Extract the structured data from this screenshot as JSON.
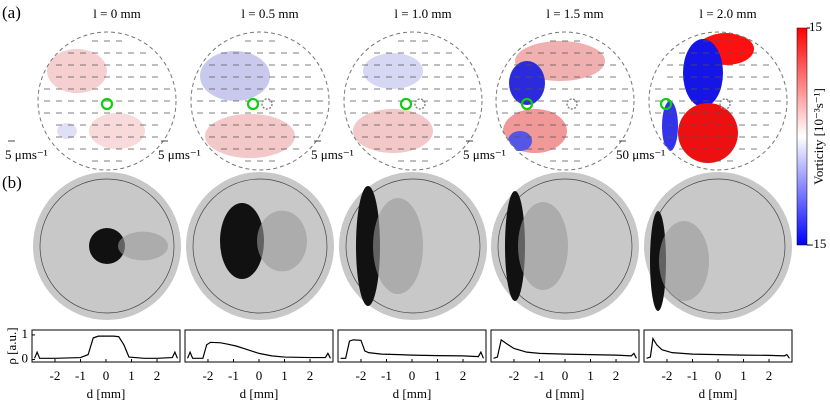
{
  "panel_labels": [
    "(a)",
    "(b)"
  ],
  "chart_data": [
    {
      "type": "line",
      "title": "l = 0 mm",
      "arrow_label": "5 μms⁻¹",
      "color": "#000000",
      "x": [
        -2.8,
        -2.7,
        -2.6,
        -2,
        -1,
        -0.7,
        -0.5,
        -0.3,
        0,
        0.3,
        0.5,
        0.7,
        0.9,
        1.5,
        2,
        2.6,
        2.7,
        2.8
      ],
      "values": [
        0.05,
        0.3,
        0.05,
        0.05,
        0.08,
        0.2,
        0.88,
        0.95,
        0.95,
        0.95,
        0.93,
        0.6,
        0.1,
        0.05,
        0.05,
        0.08,
        0.3,
        0.05
      ],
      "xlim": [
        -2.9,
        2.9
      ],
      "xticks": [
        -2,
        -1,
        0,
        1,
        2
      ],
      "ylim": [
        -0.1,
        1.2
      ],
      "yticks": [
        0,
        1
      ],
      "xlabel": "d [mm]",
      "ylabel": "ρ [a.u.]"
    },
    {
      "type": "line",
      "title": "l = 0.5 mm",
      "arrow_label": "5 μms⁻¹",
      "color": "#000000",
      "x": [
        -2.8,
        -2.7,
        -2.6,
        -2.2,
        -2.05,
        -1.9,
        -1.5,
        -1.2,
        -0.9,
        -0.6,
        -0.3,
        0,
        0.5,
        1,
        2,
        2.6,
        2.7,
        2.8
      ],
      "values": [
        0.05,
        0.3,
        0.05,
        0.05,
        0.6,
        0.7,
        0.68,
        0.62,
        0.55,
        0.45,
        0.35,
        0.25,
        0.15,
        0.1,
        0.08,
        0.08,
        0.25,
        0.05
      ],
      "xlim": [
        -2.9,
        2.9
      ],
      "xticks": [
        -2,
        -1,
        0,
        1,
        2
      ],
      "ylim": [
        -0.1,
        1.2
      ],
      "xlabel": "d [mm]"
    },
    {
      "type": "line",
      "title": "l = 1.0 mm",
      "arrow_label": "5 μms⁻¹",
      "color": "#000000",
      "x": [
        -2.8,
        -2.6,
        -2.45,
        -2.3,
        -2.0,
        -1.85,
        -1.7,
        -1.2,
        -0.5,
        0,
        1,
        2,
        2.6,
        2.7,
        2.8
      ],
      "values": [
        0.05,
        0.05,
        0.75,
        0.8,
        0.78,
        0.35,
        0.28,
        0.22,
        0.2,
        0.18,
        0.16,
        0.15,
        0.12,
        0.3,
        0.05
      ],
      "xlim": [
        -2.9,
        2.9
      ],
      "xticks": [
        -2,
        -1,
        0,
        1,
        2
      ],
      "ylim": [
        -0.1,
        1.2
      ],
      "xlabel": "d [mm]"
    },
    {
      "type": "line",
      "title": "l = 1.5 mm",
      "arrow_label": "5 μms⁻¹",
      "color": "#000000",
      "x": [
        -2.8,
        -2.65,
        -2.5,
        -2.3,
        -2.0,
        -1.5,
        -1.0,
        0,
        1,
        2,
        2.6,
        2.7,
        2.8
      ],
      "values": [
        0.05,
        0.1,
        0.8,
        0.65,
        0.45,
        0.3,
        0.25,
        0.22,
        0.2,
        0.18,
        0.15,
        0.25,
        0.05
      ],
      "xlim": [
        -2.9,
        2.9
      ],
      "xticks": [
        -2,
        -1,
        0,
        1,
        2
      ],
      "ylim": [
        -0.1,
        1.2
      ],
      "xlabel": "d [mm]"
    },
    {
      "type": "line",
      "title": "l = 2.0 mm",
      "arrow_label": "50 μms⁻¹",
      "color": "#000000",
      "x": [
        -2.8,
        -2.65,
        -2.55,
        -2.4,
        -2.2,
        -1.8,
        -1,
        0,
        1,
        2,
        2.6,
        2.7,
        2.8
      ],
      "values": [
        0.05,
        0.1,
        0.85,
        0.6,
        0.4,
        0.28,
        0.22,
        0.2,
        0.18,
        0.17,
        0.15,
        0.2,
        0.05
      ],
      "xlim": [
        -2.9,
        2.9
      ],
      "xticks": [
        -2,
        -1,
        0,
        1,
        2
      ],
      "ylim": [
        -0.1,
        1.2
      ],
      "xlabel": "d [mm]"
    },
    {
      "type": "colorbar",
      "label": "Vorticity [10⁻³s⁻¹]",
      "ylim": [
        -15,
        15
      ],
      "yticks": [
        -15,
        15
      ],
      "colors": [
        "#0000ff",
        "#ffffff",
        "#ff0000"
      ]
    }
  ]
}
